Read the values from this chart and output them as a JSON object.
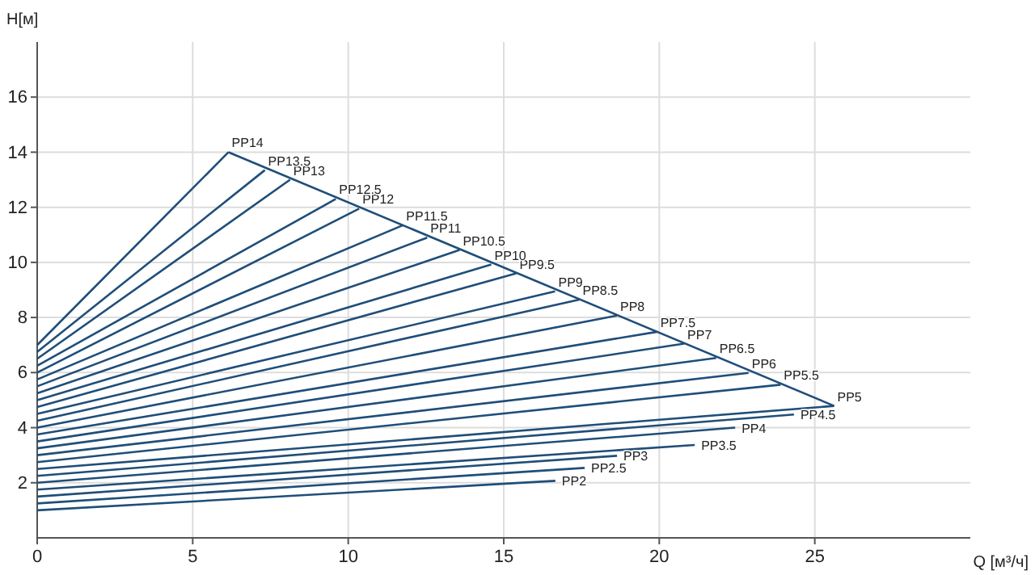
{
  "chart_data": {
    "type": "line",
    "xlabel": "Q [м³/ч]",
    "ylabel": "H[м]",
    "xlim": [
      0,
      30
    ],
    "ylim": [
      0,
      18
    ],
    "xticks": [
      0,
      5,
      10,
      15,
      20,
      25
    ],
    "yticks": [
      2,
      4,
      6,
      8,
      10,
      12,
      14,
      16
    ],
    "grid": true,
    "legend": false,
    "marker": "none",
    "line_style": "solid",
    "series": [
      {
        "color": "#1f4e79",
        "x": [
          6.15,
          25.62
        ],
        "values": [
          14.0,
          4.79
        ]
      },
      {
        "name": "PP2",
        "color": "#1f4e79",
        "x": [
          0,
          16.66
        ],
        "values": [
          1.0,
          2.07
        ]
      },
      {
        "name": "PP2.5",
        "color": "#1f4e79",
        "x": [
          0,
          17.6
        ],
        "values": [
          1.25,
          2.54
        ]
      },
      {
        "name": "PP3",
        "color": "#1f4e79",
        "x": [
          0,
          18.64
        ],
        "values": [
          1.5,
          2.98
        ]
      },
      {
        "name": "PP3.5",
        "color": "#1f4e79",
        "x": [
          0,
          21.14
        ],
        "values": [
          1.75,
          3.37
        ]
      },
      {
        "name": "PP4",
        "color": "#1f4e79",
        "x": [
          0,
          22.44
        ],
        "values": [
          2.0,
          4.0
        ]
      },
      {
        "name": "PP4.5",
        "color": "#1f4e79",
        "x": [
          0,
          24.33
        ],
        "values": [
          2.25,
          4.48
        ]
      },
      {
        "name": "PP5",
        "color": "#1f4e79",
        "x": [
          0,
          25.62
        ],
        "values": [
          2.5,
          4.79
        ]
      },
      {
        "name": "PP5.5",
        "color": "#1f4e79",
        "x": [
          0,
          23.9
        ],
        "values": [
          2.75,
          5.56
        ]
      },
      {
        "name": "PP6",
        "color": "#1f4e79",
        "x": [
          0,
          22.87
        ],
        "values": [
          3.0,
          5.99
        ]
      },
      {
        "name": "PP6.5",
        "color": "#1f4e79",
        "x": [
          0,
          21.83
        ],
        "values": [
          3.25,
          6.53
        ]
      },
      {
        "name": "PP7",
        "color": "#1f4e79",
        "x": [
          0,
          20.8
        ],
        "values": [
          3.5,
          7.05
        ]
      },
      {
        "name": "PP7.5",
        "color": "#1f4e79",
        "x": [
          0,
          19.93
        ],
        "values": [
          3.75,
          7.48
        ]
      },
      {
        "name": "PP8",
        "color": "#1f4e79",
        "x": [
          0,
          18.64
        ],
        "values": [
          4.0,
          8.07
        ]
      },
      {
        "name": "PP8.5",
        "color": "#1f4e79",
        "x": [
          0,
          17.43
        ],
        "values": [
          4.25,
          8.65
        ]
      },
      {
        "name": "PP9",
        "color": "#1f4e79",
        "x": [
          0,
          16.65
        ],
        "values": [
          4.5,
          8.95
        ]
      },
      {
        "name": "PP9.5",
        "color": "#1f4e79",
        "x": [
          0,
          15.4
        ],
        "values": [
          4.75,
          9.6
        ]
      },
      {
        "name": "PP10",
        "color": "#1f4e79",
        "x": [
          0,
          14.6
        ],
        "values": [
          5.0,
          9.92
        ]
      },
      {
        "name": "PP10.5",
        "color": "#1f4e79",
        "x": [
          0,
          13.58
        ],
        "values": [
          5.25,
          10.45
        ]
      },
      {
        "name": "PP11",
        "color": "#1f4e79",
        "x": [
          0,
          12.54
        ],
        "values": [
          5.5,
          10.9
        ]
      },
      {
        "name": "PP11.5",
        "color": "#1f4e79",
        "x": [
          0,
          11.76
        ],
        "values": [
          5.75,
          11.35
        ]
      },
      {
        "name": "PP12",
        "color": "#1f4e79",
        "x": [
          0,
          10.35
        ],
        "values": [
          6.0,
          11.95
        ]
      },
      {
        "name": "PP12.5",
        "color": "#1f4e79",
        "x": [
          0,
          9.6
        ],
        "values": [
          6.25,
          12.3
        ]
      },
      {
        "name": "PP13",
        "color": "#1f4e79",
        "x": [
          0,
          8.13
        ],
        "values": [
          6.5,
          13.0
        ]
      },
      {
        "name": "PP13.5",
        "color": "#1f4e79",
        "x": [
          0,
          7.32
        ],
        "values": [
          6.75,
          13.35
        ]
      },
      {
        "name": "PP14",
        "color": "#1f4e79",
        "x": [
          0,
          6.15
        ],
        "values": [
          7.0,
          14.0
        ]
      }
    ]
  }
}
